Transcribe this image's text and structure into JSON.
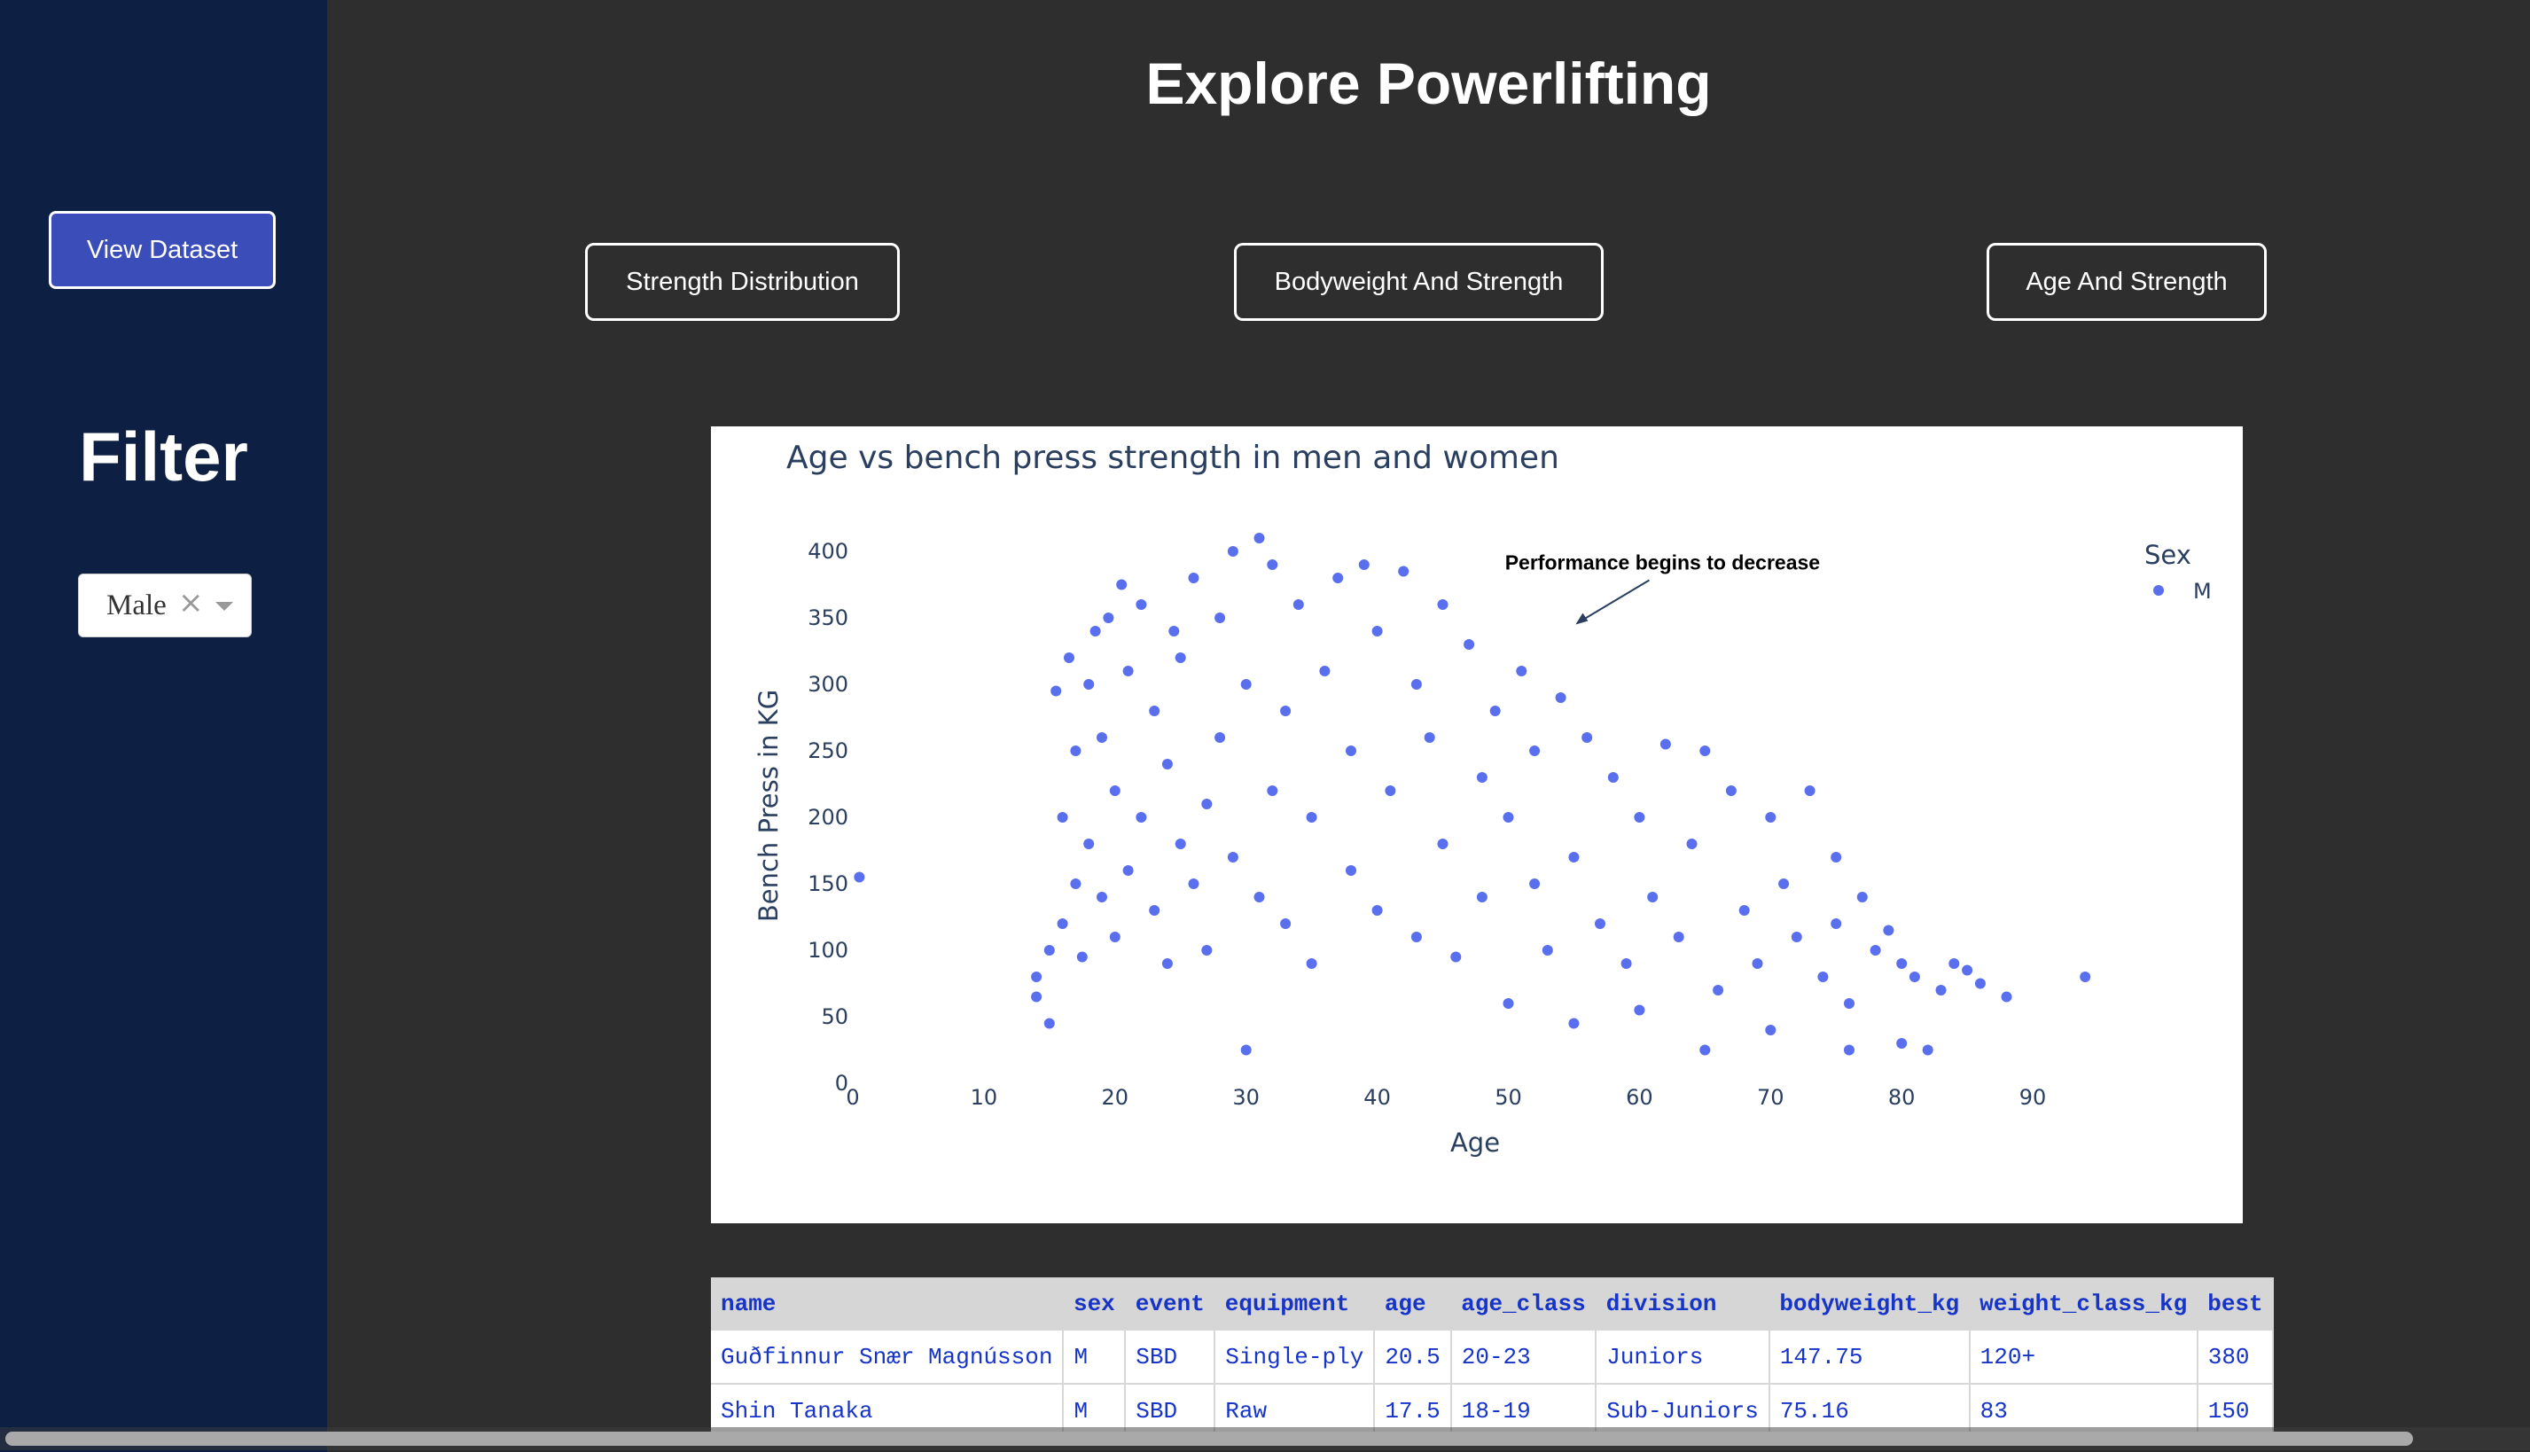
{
  "sidebar": {
    "view_dataset_label": "View Dataset",
    "filter_title": "Filter",
    "filter_value": "Male",
    "filter_clear": "×"
  },
  "header": {
    "title": "Explore Powerlifting"
  },
  "tabs": [
    {
      "label": "Strength Distribution"
    },
    {
      "label": "Bodyweight And Strength"
    },
    {
      "label": "Age And Strength"
    }
  ],
  "colors": {
    "sidebar_bg": "#0d1f42",
    "page_bg": "#2e2e2e",
    "button_fill": "#3a4db8",
    "marker": "#5a6fee",
    "table_text": "#1734c8"
  },
  "chart_data": {
    "type": "scatter",
    "title": "Age vs bench press strength in men and women",
    "xlabel": "Age",
    "ylabel": "Bench Press in KG",
    "xlim": [
      0,
      95
    ],
    "ylim": [
      0,
      410
    ],
    "xticks": [
      0,
      10,
      20,
      30,
      40,
      50,
      60,
      70,
      80,
      90
    ],
    "yticks": [
      0,
      50,
      100,
      150,
      200,
      250,
      300,
      350,
      400
    ],
    "grid": false,
    "legend": {
      "title": "Sex",
      "placement": "top-right",
      "entries": [
        "M"
      ]
    },
    "annotation": {
      "text": "Performance begins to decrease",
      "x": 55,
      "y": 345
    },
    "series": [
      {
        "name": "M",
        "color": "#5a6fee",
        "points": [
          [
            0.5,
            155
          ],
          [
            14,
            80
          ],
          [
            14,
            65
          ],
          [
            15,
            45
          ],
          [
            15,
            100
          ],
          [
            15.5,
            295
          ],
          [
            16,
            120
          ],
          [
            16,
            200
          ],
          [
            16.5,
            320
          ],
          [
            17,
            150
          ],
          [
            17,
            250
          ],
          [
            17.5,
            95
          ],
          [
            18,
            180
          ],
          [
            18,
            300
          ],
          [
            18.5,
            340
          ],
          [
            19,
            140
          ],
          [
            19,
            260
          ],
          [
            19.5,
            350
          ],
          [
            20,
            110
          ],
          [
            20,
            220
          ],
          [
            20.5,
            375
          ],
          [
            21,
            160
          ],
          [
            21,
            310
          ],
          [
            22,
            200
          ],
          [
            22,
            360
          ],
          [
            23,
            130
          ],
          [
            23,
            280
          ],
          [
            24,
            90
          ],
          [
            24,
            240
          ],
          [
            24.5,
            340
          ],
          [
            25,
            180
          ],
          [
            25,
            320
          ],
          [
            26,
            150
          ],
          [
            26,
            380
          ],
          [
            27,
            210
          ],
          [
            27,
            100
          ],
          [
            28,
            260
          ],
          [
            28,
            350
          ],
          [
            29,
            170
          ],
          [
            29,
            400
          ],
          [
            30,
            25
          ],
          [
            30,
            300
          ],
          [
            31,
            140
          ],
          [
            31,
            410
          ],
          [
            32,
            220
          ],
          [
            32,
            390
          ],
          [
            33,
            120
          ],
          [
            33,
            280
          ],
          [
            34,
            360
          ],
          [
            35,
            200
          ],
          [
            35,
            90
          ],
          [
            36,
            310
          ],
          [
            37,
            380
          ],
          [
            38,
            160
          ],
          [
            38,
            250
          ],
          [
            39,
            390
          ],
          [
            40,
            130
          ],
          [
            40,
            340
          ],
          [
            41,
            220
          ],
          [
            42,
            385
          ],
          [
            43,
            110
          ],
          [
            43,
            300
          ],
          [
            44,
            260
          ],
          [
            45,
            360
          ],
          [
            45,
            180
          ],
          [
            46,
            95
          ],
          [
            47,
            330
          ],
          [
            48,
            140
          ],
          [
            48,
            230
          ],
          [
            49,
            280
          ],
          [
            50,
            60
          ],
          [
            50,
            200
          ],
          [
            51,
            310
          ],
          [
            52,
            150
          ],
          [
            52,
            250
          ],
          [
            53,
            100
          ],
          [
            54,
            290
          ],
          [
            55,
            170
          ],
          [
            55,
            45
          ],
          [
            56,
            260
          ],
          [
            57,
            120
          ],
          [
            58,
            230
          ],
          [
            59,
            90
          ],
          [
            60,
            200
          ],
          [
            60,
            55
          ],
          [
            61,
            140
          ],
          [
            62,
            255
          ],
          [
            63,
            110
          ],
          [
            64,
            180
          ],
          [
            65,
            250
          ],
          [
            65,
            25
          ],
          [
            66,
            70
          ],
          [
            67,
            220
          ],
          [
            68,
            130
          ],
          [
            69,
            90
          ],
          [
            70,
            200
          ],
          [
            70,
            40
          ],
          [
            71,
            150
          ],
          [
            72,
            110
          ],
          [
            73,
            220
          ],
          [
            74,
            80
          ],
          [
            75,
            170
          ],
          [
            75,
            120
          ],
          [
            76,
            60
          ],
          [
            76,
            25
          ],
          [
            77,
            140
          ],
          [
            78,
            100
          ],
          [
            79,
            115
          ],
          [
            80,
            30
          ],
          [
            80,
            90
          ],
          [
            81,
            80
          ],
          [
            82,
            25
          ],
          [
            83,
            70
          ],
          [
            84,
            90
          ],
          [
            85,
            85
          ],
          [
            86,
            75
          ],
          [
            88,
            65
          ],
          [
            94,
            80
          ]
        ]
      }
    ]
  },
  "table": {
    "columns": [
      "name",
      "sex",
      "event",
      "equipment",
      "age",
      "age_class",
      "division",
      "bodyweight_kg",
      "weight_class_kg",
      "best"
    ],
    "rows": [
      [
        "Guðfinnur Snær Magnússon",
        "M",
        "SBD",
        "Single-ply",
        "20.5",
        "20-23",
        "Juniors",
        "147.75",
        "120+",
        "380"
      ],
      [
        "Shin Tanaka",
        "M",
        "SBD",
        "Raw",
        "17.5",
        "18-19",
        "Sub-Juniors",
        "75.16",
        "83",
        "150"
      ]
    ]
  }
}
